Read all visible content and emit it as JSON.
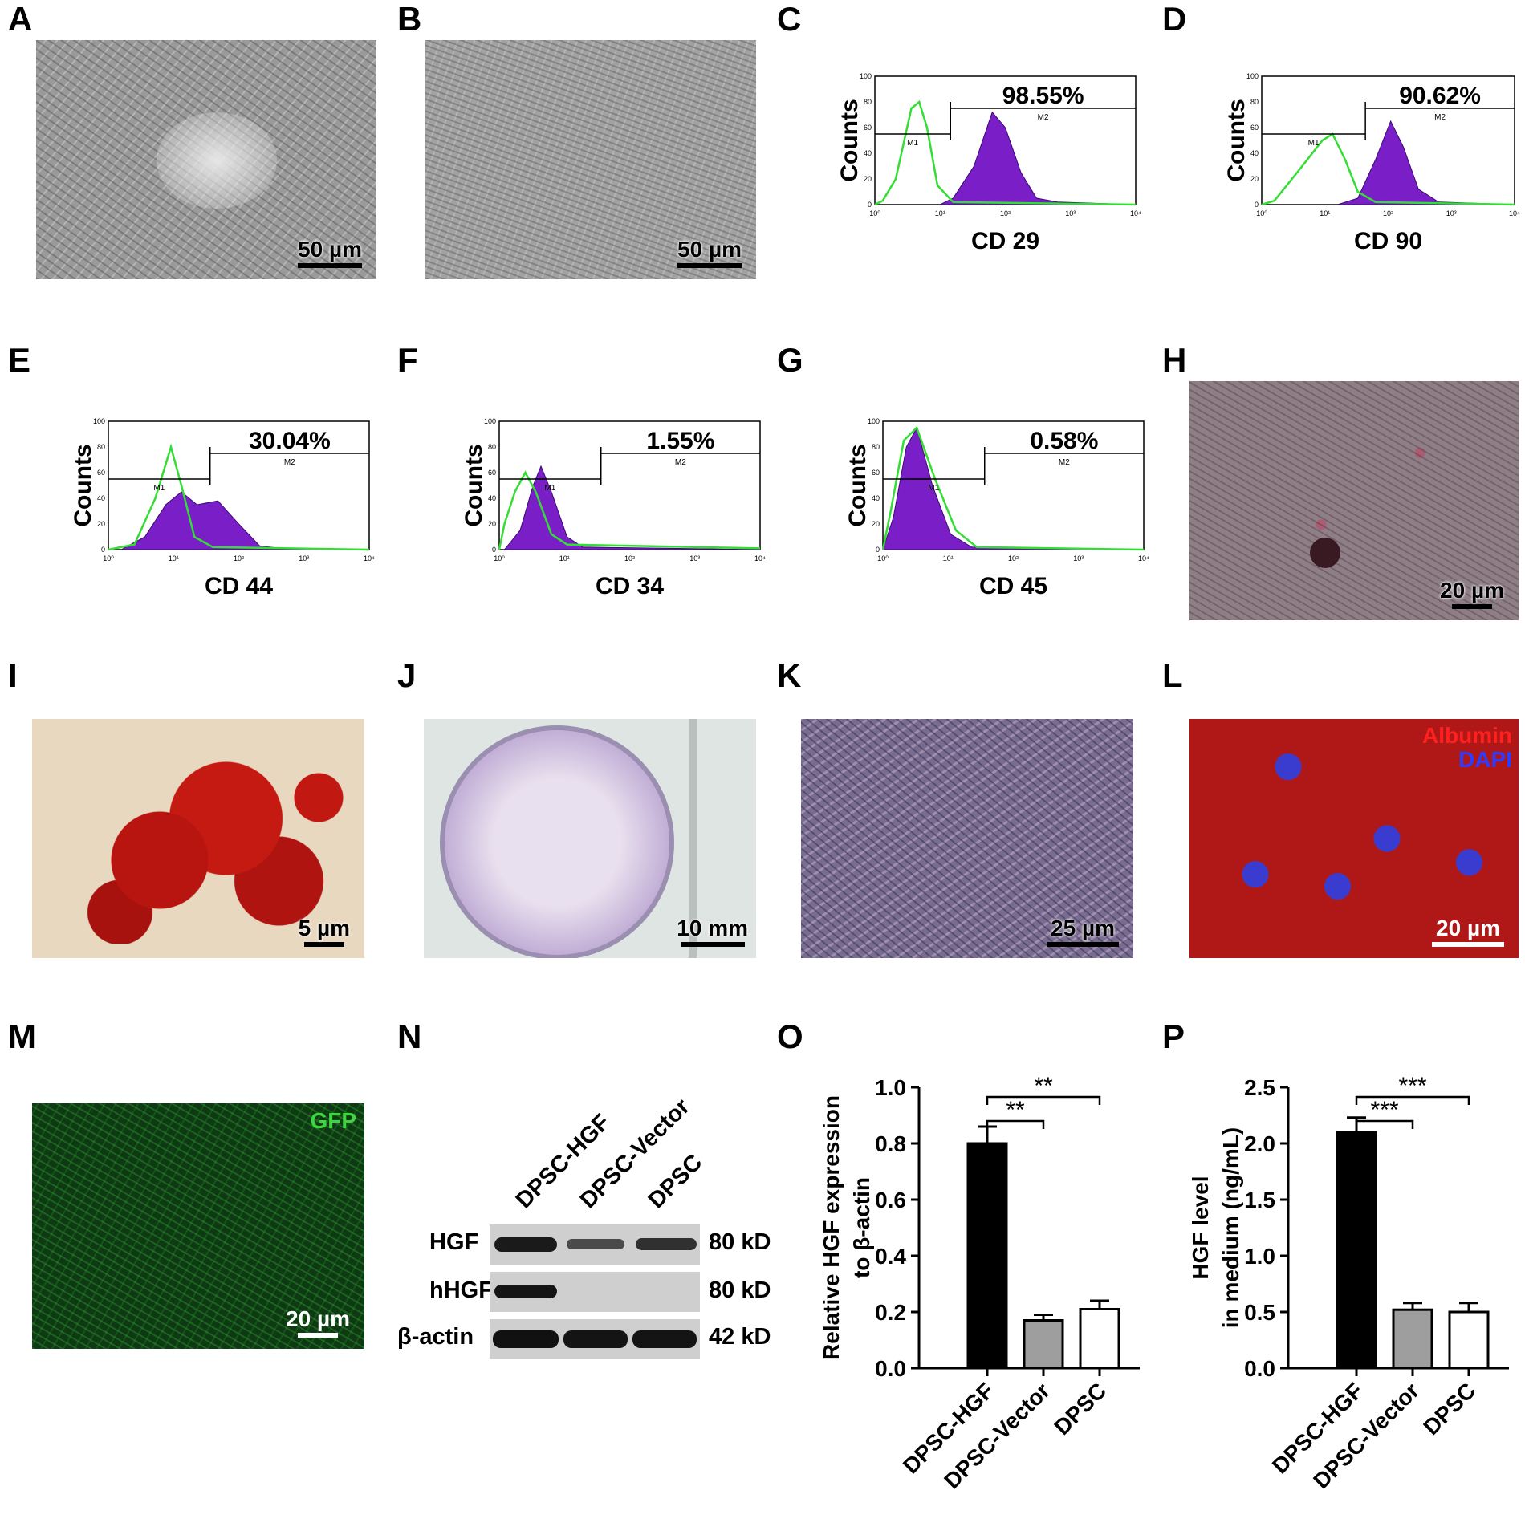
{
  "panels": {
    "A": {
      "letter": "A",
      "scale": "50 µm"
    },
    "B": {
      "letter": "B",
      "scale": "50 µm"
    },
    "C": {
      "letter": "C",
      "marker": "CD 29",
      "percent": "98.55%",
      "ylabel": "Counts",
      "m1": "M1",
      "m2": "M2"
    },
    "D": {
      "letter": "D",
      "marker": "CD 90",
      "percent": "90.62%",
      "ylabel": "Counts",
      "m1": "M1",
      "m2": "M2"
    },
    "E": {
      "letter": "E",
      "marker": "CD 44",
      "percent": "30.04%",
      "ylabel": "Counts",
      "m1": "M1",
      "m2": "M2"
    },
    "F": {
      "letter": "F",
      "marker": "CD 34",
      "percent": "1.55%",
      "ylabel": "Counts",
      "m1": "M1",
      "m2": "M2"
    },
    "G": {
      "letter": "G",
      "marker": "CD 45",
      "percent": "0.58%",
      "ylabel": "Counts",
      "m1": "M1",
      "m2": "M2"
    },
    "H": {
      "letter": "H",
      "scale": "20 µm"
    },
    "I": {
      "letter": "I",
      "scale": "5 µm"
    },
    "J": {
      "letter": "J",
      "scale": "10 mm"
    },
    "K": {
      "letter": "K",
      "scale": "25 µm"
    },
    "L": {
      "letter": "L",
      "scale": "20 µm",
      "stain1": "Albumin",
      "stain2": "DAPI"
    },
    "M": {
      "letter": "M",
      "scale": "20 µm",
      "stain": "GFP"
    },
    "N": {
      "letter": "N",
      "lanes": [
        "DPSC-HGF",
        "DPSC-Vector",
        "DPSC"
      ],
      "rows": [
        {
          "label": "HGF",
          "size": "80 kD"
        },
        {
          "label": "hHGF",
          "size": "80 kD"
        },
        {
          "label": "β-actin",
          "size": "42 kD"
        }
      ]
    },
    "O": {
      "letter": "O"
    },
    "P": {
      "letter": "P"
    }
  },
  "flow_axis": {
    "y_ticks": [
      "0",
      "20",
      "40",
      "60",
      "80",
      "100"
    ],
    "x_ticks": [
      "10⁰",
      "10¹",
      "10²",
      "10³",
      "10⁴"
    ]
  },
  "chart_data": [
    {
      "type": "bar",
      "panel": "O",
      "categories": [
        "DPSC-HGF",
        "DPSC-Vector",
        "DPSC"
      ],
      "values": [
        0.8,
        0.17,
        0.21
      ],
      "errors": [
        0.06,
        0.02,
        0.03
      ],
      "ylabel": "Relative HGF expression to β-actin",
      "ylabel_lines": [
        "Relative HGF expression",
        "to β-actin"
      ],
      "ylim": [
        0,
        1.0
      ],
      "yticks": [
        "0.0",
        "0.2",
        "0.4",
        "0.6",
        "0.8",
        "1.0"
      ],
      "fills": [
        "#000000",
        "#9e9e9e",
        "#ffffff"
      ],
      "significance": [
        {
          "pair": [
            0,
            1
          ],
          "label": "**"
        },
        {
          "pair": [
            0,
            2
          ],
          "label": "**"
        }
      ]
    },
    {
      "type": "bar",
      "panel": "P",
      "categories": [
        "DPSC-HGF",
        "DPSC-Vector",
        "DPSC"
      ],
      "values": [
        2.1,
        0.52,
        0.5
      ],
      "errors": [
        0.13,
        0.06,
        0.08
      ],
      "ylabel": "HGF level in medium (ng/mL)",
      "ylabel_lines": [
        "HGF level",
        "in medium (ng/mL)"
      ],
      "ylim": [
        0,
        2.5
      ],
      "yticks": [
        "0.0",
        "0.5",
        "1.0",
        "1.5",
        "2.0",
        "2.5"
      ],
      "fills": [
        "#000000",
        "#9e9e9e",
        "#ffffff"
      ],
      "significance": [
        {
          "pair": [
            0,
            1
          ],
          "label": "***"
        },
        {
          "pair": [
            0,
            2
          ],
          "label": "***"
        }
      ]
    }
  ]
}
